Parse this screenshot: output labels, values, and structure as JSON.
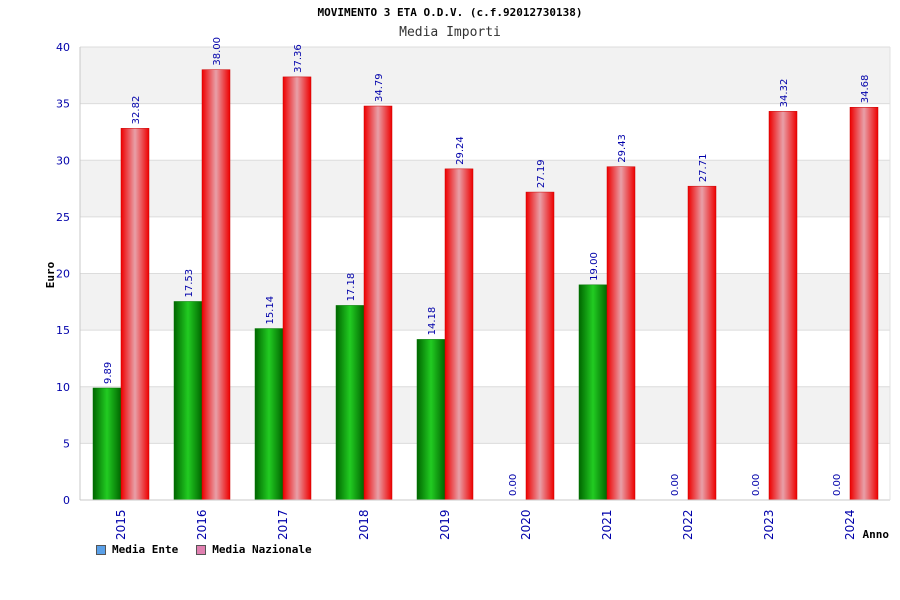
{
  "title": "MOVIMENTO 3 ETA O.D.V. (c.f.92012730138)",
  "subtitle": "Media Importi",
  "chart_data": {
    "type": "bar",
    "categories": [
      "2015",
      "2016",
      "2017",
      "2018",
      "2019",
      "2020",
      "2021",
      "2022",
      "2023",
      "2024"
    ],
    "series": [
      {
        "name": "Media Ente",
        "values": [
          9.89,
          17.53,
          15.14,
          17.18,
          14.18,
          0.0,
          19.0,
          0.0,
          0.0,
          0.0
        ],
        "labels": [
          "9.89",
          "17.53",
          "15.14",
          "17.18",
          "14.18",
          "0.00",
          "19.00",
          "0.00",
          "0.00",
          "0.00"
        ],
        "color": "#00aa00"
      },
      {
        "name": "Media Nazionale",
        "values": [
          32.82,
          38.0,
          37.36,
          34.79,
          29.24,
          27.19,
          29.43,
          27.71,
          34.32,
          34.68
        ],
        "labels": [
          "32.82",
          "38.00",
          "37.36",
          "34.79",
          "29.24",
          "27.19",
          "29.43",
          "27.71",
          "34.32",
          "34.68"
        ],
        "color": "#ee1111"
      }
    ],
    "xlabel": "Anno",
    "ylabel": "Euro",
    "ylim": [
      0,
      40
    ],
    "yticks": [
      0,
      5,
      10,
      15,
      20,
      25,
      30,
      35,
      40
    ],
    "grid": true,
    "legend_position": "bottom-left"
  },
  "legend": {
    "items": [
      {
        "label": "Media Ente",
        "color": "#5aa0e8"
      },
      {
        "label": "Media Nazionale",
        "color": "#e080b0"
      }
    ]
  }
}
